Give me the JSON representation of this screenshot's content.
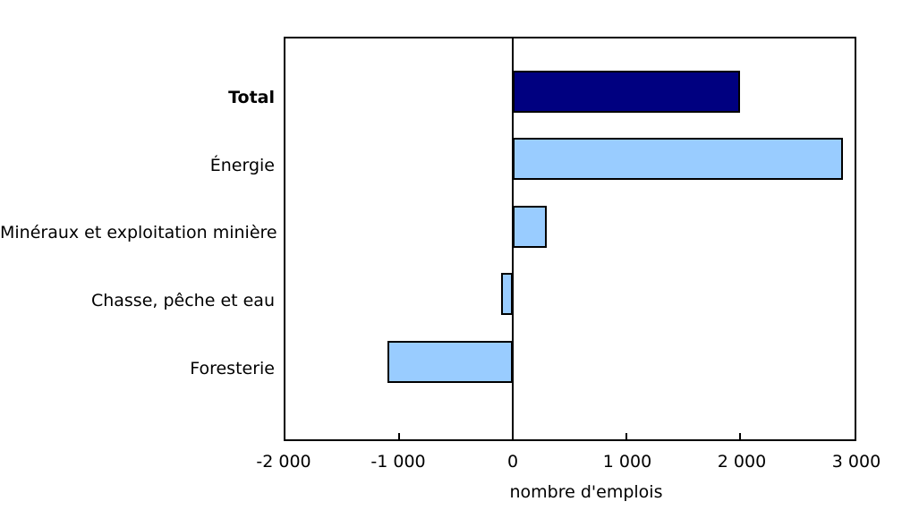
{
  "chart_data": {
    "type": "bar",
    "orientation": "horizontal",
    "title": "",
    "xlabel": "nombre d'emplois",
    "ylabel": "",
    "categories": [
      "Total",
      "Énergie",
      "Minéraux et exploitation minière",
      "Chasse, pêche et eau",
      "Foresterie"
    ],
    "values": [
      2000,
      2900,
      300,
      -100,
      -1100
    ],
    "bar_colors": [
      "#000080",
      "#99CCFF",
      "#99CCFF",
      "#99CCFF",
      "#99CCFF"
    ],
    "emphasized_category": "Total",
    "xlim": [
      -2000,
      3000
    ],
    "xticks": [
      -2000,
      -1000,
      0,
      1000,
      2000,
      3000
    ],
    "xtick_labels": [
      "-2 000",
      "-1 000",
      "0",
      "1 000",
      "2 000",
      "3 000"
    ],
    "grid": false,
    "legend": "none",
    "colors": {
      "bar_border": "#000000",
      "axis": "#000000",
      "text": "#000000",
      "background": "#FFFFFF"
    }
  }
}
